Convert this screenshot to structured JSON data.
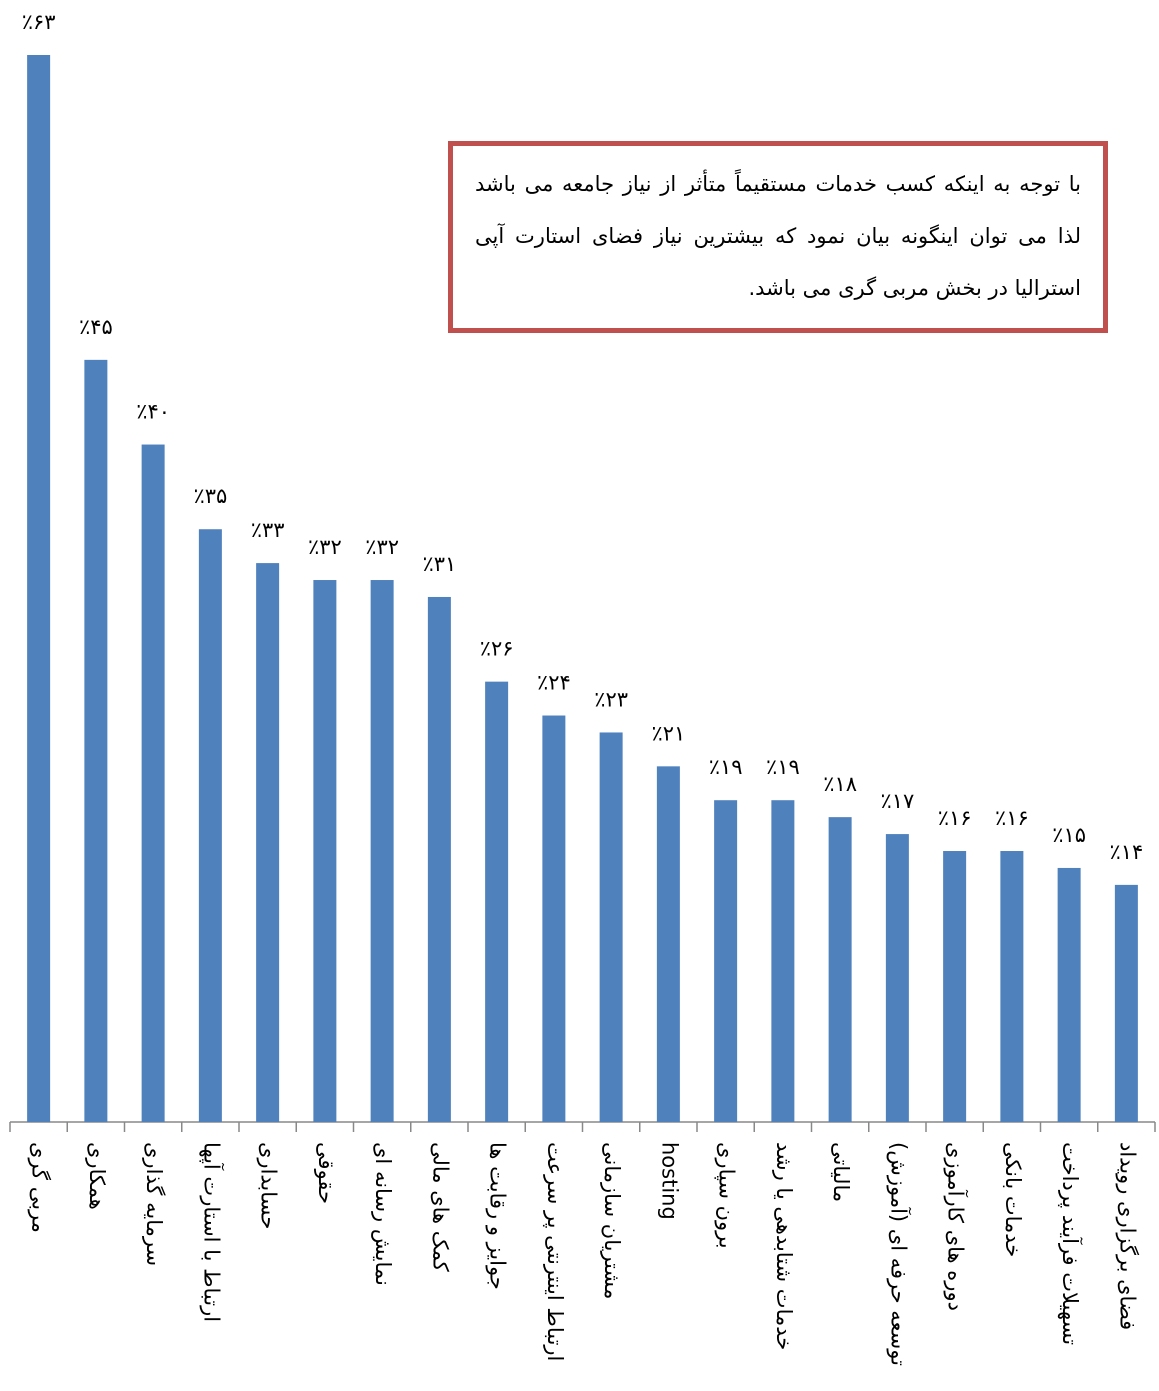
{
  "chart_data": {
    "type": "bar",
    "categories": [
      "مربی گری",
      "همکاری",
      "سرمایه گذاری",
      "ارتباط با استارت آپها",
      "حسابداری",
      "حقوقی",
      "نمایش رسانه ای",
      "کمک های مالی",
      "جوایز و رقابت ها",
      "ارتباط اینترنتی پر سرعت",
      "مشتریان سازمانی",
      "hosting",
      "برون سپاری",
      "خدمات شتابدهی یا رشد",
      "مالیاتی",
      "توسعه حرفه ای (آموزش)",
      "دوره های کارآموزی",
      "خدمات بانکی",
      "تسهیلات فرآیند پرداخت",
      "فضای برگزاری رویداد"
    ],
    "values": [
      63,
      45,
      40,
      35,
      33,
      32,
      32,
      31,
      26,
      24,
      23,
      21,
      19,
      19,
      18,
      17,
      16,
      16,
      15,
      14
    ],
    "value_labels": [
      "٪۶۳",
      "٪۴۵",
      "٪۴۰",
      "٪۳۵",
      "٪۳۳",
      "٪۳۲",
      "٪۳۲",
      "٪۳۱",
      "٪۲۶",
      "٪۲۴",
      "٪۲۳",
      "٪۲۱",
      "٪۱۹",
      "٪۱۹",
      "٪۱۸",
      "٪۱۷",
      "٪۱۶",
      "٪۱۶",
      "٪۱۵",
      "٪۱۴"
    ],
    "color": "#4f81bd",
    "annotation": "با توجه به اینکه کسب خدمات مستقیماً متأثر از نیاز جامعه می باشد لذا می توان اینگونه بیان نمود که بیشترین نیاز فضای استارت آپی استرالیا در بخش مربی گری می باشد."
  }
}
